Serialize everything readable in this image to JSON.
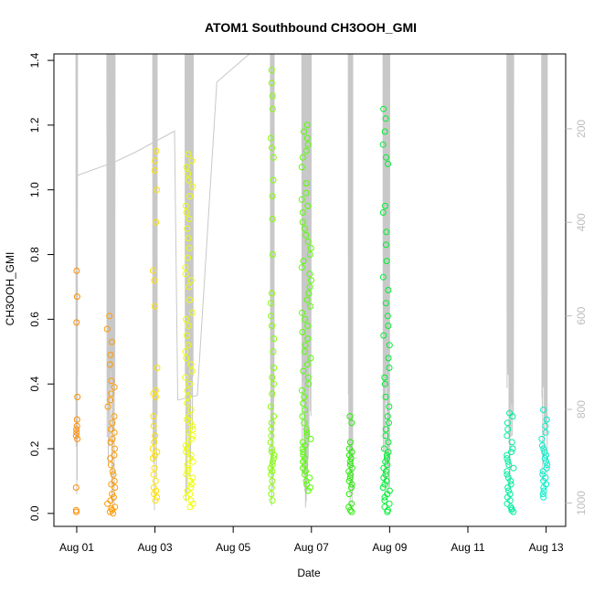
{
  "chart_data": {
    "type": "scatter",
    "title": "ATOM1 Southbound CH3OOH_GMI",
    "xlabel": "Date",
    "ylabel": "CH3OOH_GMI",
    "xlim": [
      "2016-07-31T10:00",
      "2016-08-13T12:00"
    ],
    "ylim": [
      -0.04,
      1.42
    ],
    "x_ticks": [
      {
        "date": "2016-08-01",
        "label": "Aug 01"
      },
      {
        "date": "2016-08-03",
        "label": "Aug 03"
      },
      {
        "date": "2016-08-05",
        "label": "Aug 05"
      },
      {
        "date": "2016-08-07",
        "label": "Aug 07"
      },
      {
        "date": "2016-08-09",
        "label": "Aug 09"
      },
      {
        "date": "2016-08-11",
        "label": "Aug 11"
      },
      {
        "date": "2016-08-13",
        "label": "Aug 13"
      }
    ],
    "y_ticks": [
      {
        "value": 0.0,
        "label": "0.0"
      },
      {
        "value": 0.2,
        "label": "0.2"
      },
      {
        "value": 0.4,
        "label": "0.4"
      },
      {
        "value": 0.6,
        "label": "0.6"
      },
      {
        "value": 0.8,
        "label": "0.8"
      },
      {
        "value": 1.0,
        "label": "1.0"
      },
      {
        "value": 1.2,
        "label": "1.2"
      },
      {
        "value": 1.4,
        "label": "1.4"
      }
    ],
    "secondary_axis": {
      "reversed": true,
      "ylim": [
        40,
        1050
      ],
      "ticks": [
        {
          "value": 200,
          "label": "200"
        },
        {
          "value": 400,
          "label": "400"
        },
        {
          "value": 600,
          "label": "600"
        },
        {
          "value": 800,
          "label": "800"
        },
        {
          "value": 1000,
          "label": "1000"
        }
      ],
      "color": "#bdbdbd"
    },
    "grid": false,
    "legend": "none",
    "marker": "open-circle",
    "flights": [
      {
        "date": "2016-08-01T00:00",
        "spread_days": 0.04,
        "color": "#ff8c00",
        "points": [
          0.75,
          0.67,
          0.59,
          0.36,
          0.29,
          0.27,
          0.26,
          0.25,
          0.24,
          0.23,
          0.08,
          0.01,
          0.005
        ]
      },
      {
        "date": "2016-08-01T21:00",
        "spread_days": 0.22,
        "color": "#ff9a00",
        "points": [
          0.61,
          0.57,
          0.53,
          0.49,
          0.46,
          0.41,
          0.39,
          0.37,
          0.35,
          0.33,
          0.3,
          0.28,
          0.26,
          0.25,
          0.23,
          0.22,
          0.2,
          0.18,
          0.17,
          0.15,
          0.13,
          0.12,
          0.1,
          0.09,
          0.08,
          0.06,
          0.05,
          0.04,
          0.03,
          0.02,
          0.015,
          0.01,
          0.005,
          0.0
        ]
      },
      {
        "date": "2016-08-03T00:00",
        "spread_days": 0.12,
        "color": "#ffe000",
        "points": [
          1.12,
          1.09,
          1.06,
          1.0,
          0.9,
          0.75,
          0.72,
          0.64,
          0.45,
          0.38,
          0.37,
          0.36,
          0.3,
          0.27,
          0.24,
          0.22,
          0.2,
          0.19,
          0.18,
          0.17,
          0.14,
          0.12,
          0.1,
          0.08,
          0.07,
          0.06,
          0.05,
          0.04
        ]
      },
      {
        "date": "2016-08-03T21:00",
        "spread_days": 0.22,
        "color": "#eeff00",
        "points": [
          1.11,
          1.09,
          1.07,
          1.05,
          1.03,
          1.01,
          0.98,
          0.95,
          0.93,
          0.91,
          0.88,
          0.85,
          0.82,
          0.79,
          0.76,
          0.74,
          0.72,
          0.7,
          0.66,
          0.62,
          0.6,
          0.58,
          0.55,
          0.52,
          0.5,
          0.48,
          0.46,
          0.44,
          0.42,
          0.4,
          0.38,
          0.36,
          0.34,
          0.32,
          0.3,
          0.29,
          0.28,
          0.27,
          0.26,
          0.25,
          0.24,
          0.23,
          0.22,
          0.21,
          0.2,
          0.19,
          0.18,
          0.17,
          0.16,
          0.15,
          0.14,
          0.13,
          0.12,
          0.11,
          0.1,
          0.09,
          0.08,
          0.07,
          0.06,
          0.05,
          0.04,
          0.03,
          0.02
        ]
      },
      {
        "date": "2016-08-06T00:00",
        "spread_days": 0.1,
        "color": "#80ff00",
        "points": [
          1.37,
          1.33,
          1.29,
          1.25,
          1.16,
          1.13,
          1.1,
          1.03,
          0.98,
          0.91,
          0.8,
          0.68,
          0.65,
          0.61,
          0.58,
          0.54,
          0.5,
          0.45,
          0.42,
          0.4,
          0.37,
          0.33,
          0.3,
          0.28,
          0.26,
          0.24,
          0.22,
          0.2,
          0.19,
          0.18,
          0.17,
          0.16,
          0.15,
          0.14,
          0.13,
          0.12,
          0.1,
          0.08,
          0.06,
          0.04
        ]
      },
      {
        "date": "2016-08-06T21:00",
        "spread_days": 0.25,
        "color": "#55ff00",
        "points": [
          1.2,
          1.18,
          1.16,
          1.14,
          1.12,
          1.1,
          1.07,
          1.02,
          0.99,
          0.97,
          0.95,
          0.93,
          0.9,
          0.88,
          0.86,
          0.84,
          0.82,
          0.8,
          0.78,
          0.76,
          0.74,
          0.72,
          0.7,
          0.68,
          0.66,
          0.64,
          0.62,
          0.6,
          0.58,
          0.56,
          0.54,
          0.52,
          0.5,
          0.48,
          0.46,
          0.44,
          0.42,
          0.4,
          0.38,
          0.36,
          0.34,
          0.32,
          0.3,
          0.28,
          0.26,
          0.25,
          0.24,
          0.23,
          0.22,
          0.21,
          0.2,
          0.19,
          0.18,
          0.17,
          0.16,
          0.15,
          0.14,
          0.13,
          0.12,
          0.11,
          0.1,
          0.09,
          0.08,
          0.07
        ]
      },
      {
        "date": "2016-08-08T00:00",
        "spread_days": 0.12,
        "color": "#22ee00",
        "points": [
          0.3,
          0.28,
          0.22,
          0.2,
          0.19,
          0.18,
          0.17,
          0.16,
          0.15,
          0.14,
          0.13,
          0.12,
          0.11,
          0.1,
          0.09,
          0.08,
          0.06,
          0.03,
          0.02,
          0.01,
          0.005
        ]
      },
      {
        "date": "2016-08-08T22:00",
        "spread_days": 0.18,
        "color": "#00ee33",
        "points": [
          1.25,
          1.22,
          1.18,
          1.14,
          1.1,
          1.08,
          0.95,
          0.93,
          0.87,
          0.83,
          0.78,
          0.73,
          0.69,
          0.65,
          0.61,
          0.58,
          0.55,
          0.52,
          0.48,
          0.45,
          0.42,
          0.4,
          0.36,
          0.33,
          0.3,
          0.28,
          0.26,
          0.24,
          0.22,
          0.2,
          0.19,
          0.18,
          0.17,
          0.16,
          0.15,
          0.14,
          0.13,
          0.12,
          0.11,
          0.1,
          0.09,
          0.08,
          0.07,
          0.06,
          0.05,
          0.04,
          0.03,
          0.02,
          0.01,
          0.005
        ]
      },
      {
        "date": "2016-08-12T02:00",
        "spread_days": 0.18,
        "color": "#00eea0",
        "points": [
          0.31,
          0.3,
          0.28,
          0.26,
          0.24,
          0.22,
          0.2,
          0.19,
          0.18,
          0.17,
          0.16,
          0.15,
          0.14,
          0.13,
          0.12,
          0.11,
          0.1,
          0.09,
          0.08,
          0.07,
          0.06,
          0.05,
          0.04,
          0.03,
          0.02,
          0.015,
          0.01,
          0.005
        ]
      },
      {
        "date": "2016-08-12T23:00",
        "spread_days": 0.15,
        "color": "#00f0c8",
        "points": [
          0.32,
          0.29,
          0.27,
          0.25,
          0.23,
          0.21,
          0.2,
          0.19,
          0.18,
          0.17,
          0.16,
          0.15,
          0.14,
          0.13,
          0.12,
          0.11,
          0.1,
          0.09,
          0.08,
          0.07,
          0.06,
          0.05
        ]
      }
    ],
    "pressure_series": {
      "color": "#c8c8c8",
      "points": [
        [
          "2016-08-01T00:00",
          800
        ],
        [
          "2016-08-01T00:10",
          300
        ],
        [
          "2016-08-02T00:00",
          270
        ],
        [
          "2016-08-02T12:00",
          250
        ],
        [
          "2016-08-03T12:00",
          205
        ],
        [
          "2016-08-03T14:00",
          780
        ],
        [
          "2016-08-04T02:00",
          770
        ],
        [
          "2016-08-04T14:00",
          100
        ],
        [
          "2016-08-05T10:00",
          40
        ]
      ]
    }
  }
}
